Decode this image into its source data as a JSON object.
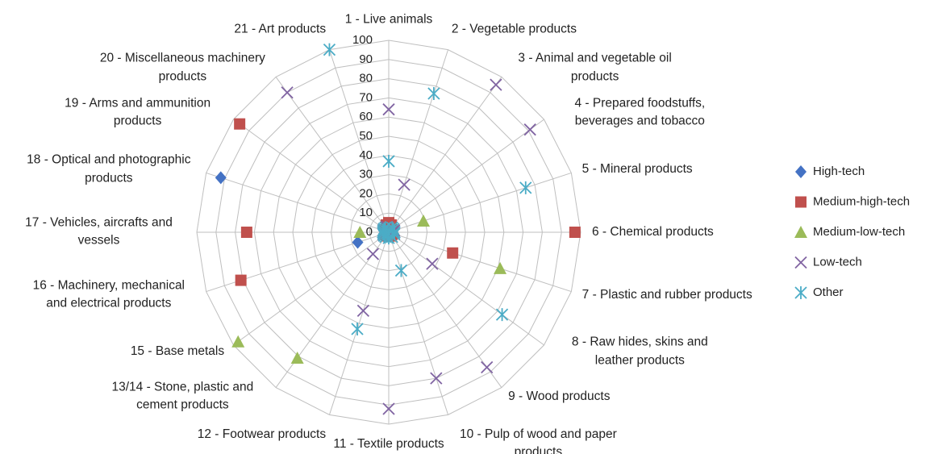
{
  "chart_data": {
    "type": "radar",
    "categories": [
      "1 - Live animals",
      "2 - Vegetable products",
      "3 - Animal and vegetable oil products",
      "4 - Prepared foodstuffs, beverages and tobacco",
      "5 - Mineral products",
      "6 - Chemical products",
      "7 - Plastic and rubber products",
      "8 - Raw hides, skins and leather products",
      "9 - Wood products",
      "10 - Pulp of wood and paper products",
      "11 - Textile products",
      "12 - Footwear products",
      "13/14 - Stone, plastic and cement products",
      "15 - Base metals",
      "16 - Machinery, mechanical and electrical products",
      "17 - Vehicles, aircrafts and vessels",
      "18 - Optical and photographic products",
      "19 - Arms and ammunition products",
      "20 - Miscellaneous machinery products",
      "21 - Art products"
    ],
    "series": [
      {
        "name": "High-tech",
        "color": "#4472c4",
        "values": [
          0,
          0,
          0,
          0,
          0,
          0,
          0,
          0,
          0,
          0,
          0,
          0,
          0,
          0,
          17,
          0,
          92,
          0,
          0,
          0
        ]
      },
      {
        "name": "Medium-high-tech",
        "color": "#c0504d",
        "values": [
          5,
          4,
          2,
          2,
          2,
          97,
          35,
          2,
          2,
          2,
          2,
          2,
          2,
          2,
          81,
          74,
          2,
          96,
          2,
          4
        ]
      },
      {
        "name": "Medium-low-tech",
        "color": "#9bbb59",
        "values": [
          0,
          0,
          0,
          0,
          19,
          0,
          61,
          0,
          0,
          0,
          0,
          0,
          81,
          97,
          0,
          15,
          0,
          0,
          0,
          0
        ]
      },
      {
        "name": "Low-tech",
        "color": "#8064a2",
        "values": [
          64,
          26,
          95,
          91,
          3,
          3,
          3,
          28,
          87,
          80,
          92,
          43,
          14,
          3,
          3,
          3,
          3,
          3,
          90,
          3
        ]
      },
      {
        "name": "Other",
        "color": "#4bacc6",
        "values": [
          37,
          76,
          3,
          3,
          75,
          3,
          3,
          73,
          3,
          21,
          3,
          53,
          3,
          3,
          3,
          3,
          3,
          3,
          3,
          100
        ]
      }
    ],
    "ylim": [
      0,
      100
    ],
    "yticks": [
      0,
      10,
      20,
      30,
      40,
      50,
      60,
      70,
      80,
      90,
      100
    ],
    "grid": true,
    "legend": "right"
  }
}
